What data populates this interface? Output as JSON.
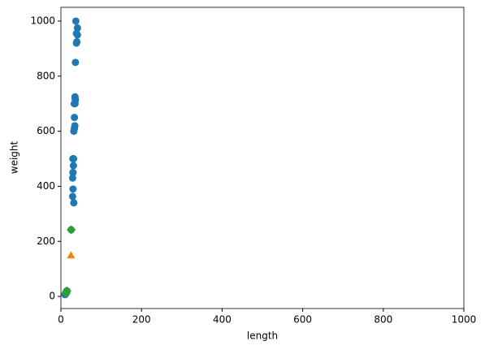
{
  "chart_data": {
    "type": "scatter",
    "xlabel": "length",
    "ylabel": "weight",
    "xlim": [
      0,
      1000
    ],
    "xticks": [
      0,
      200,
      400,
      600,
      800,
      1000
    ],
    "ylim": [
      -44,
      1050
    ],
    "yticks": [
      0,
      200,
      400,
      600,
      800,
      1000
    ],
    "series": [
      {
        "color": "#1f77b4",
        "marker": "circle",
        "x": [
          25.4,
          32,
          29,
          30,
          29,
          30,
          29.7,
          31,
          29.7,
          30.7,
          31.5,
          32,
          33.5,
          34.5,
          33.5,
          33,
          35,
          36,
          35,
          35,
          36,
          38.5,
          39.5,
          41,
          38.5,
          41,
          37,
          9.8,
          10.5,
          10.6,
          11,
          11.2,
          11.3,
          11.8,
          12,
          12.2,
          12.4,
          13,
          14.3,
          15
        ],
        "values": [
          242,
          340,
          363,
          390,
          430,
          450,
          450,
          475,
          500,
          500,
          500,
          600,
          610,
          620,
          650,
          700,
          700,
          714,
          720,
          725,
          850,
          920,
          925,
          950,
          955,
          975,
          1000,
          6.7,
          7.5,
          7,
          9.7,
          9.8,
          8.7,
          10,
          9.8,
          12.2,
          13.4,
          12.2,
          19.7,
          19.9
        ]
      },
      {
        "color": "#ff7f0e",
        "marker": "triangle",
        "x": [
          25
        ],
        "values": [
          150
        ]
      },
      {
        "color": "#2ca02c",
        "marker": "diamond",
        "x": [
          25.4,
          15,
          14.3,
          13,
          12.2
        ],
        "values": [
          242,
          19.9,
          19.7,
          12.2,
          12.2
        ]
      }
    ]
  }
}
